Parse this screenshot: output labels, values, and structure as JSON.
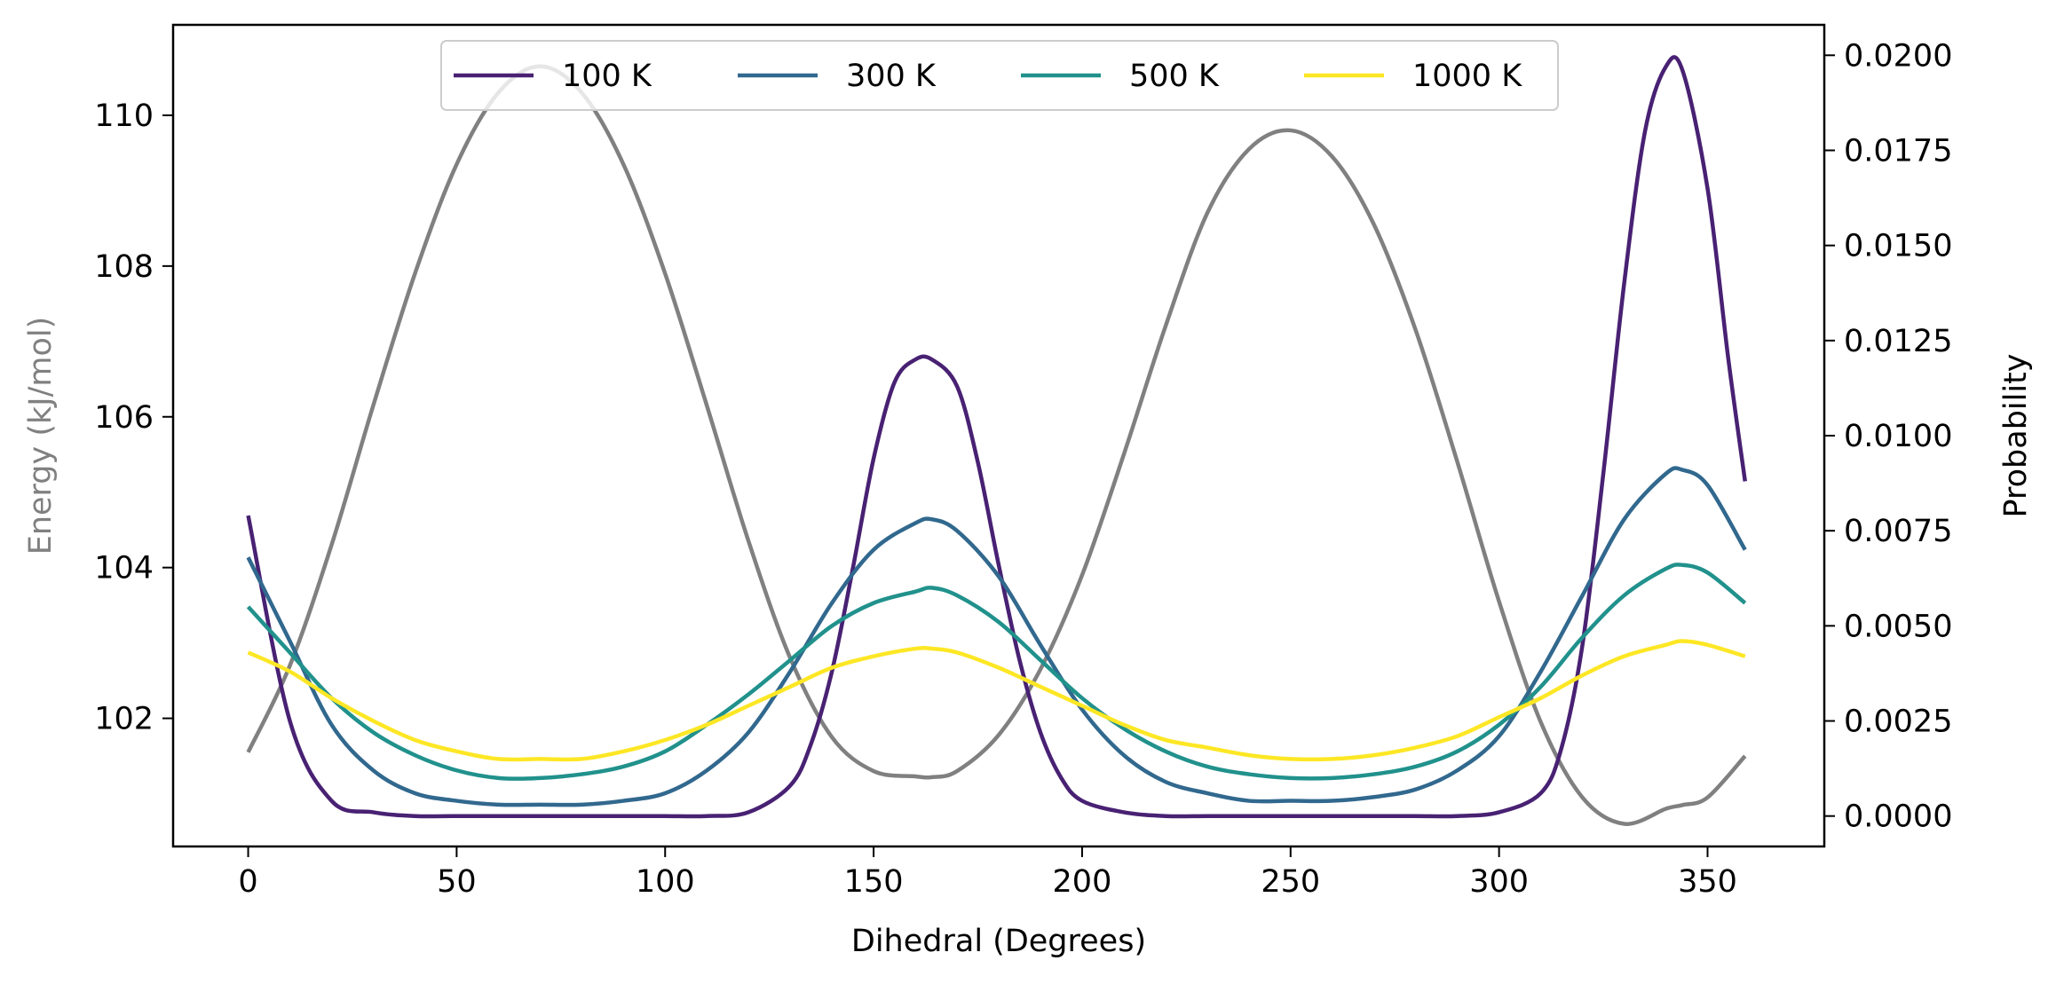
{
  "chart_data": {
    "type": "line",
    "title": "",
    "xlabel": "Dihedral (Degrees)",
    "ylabel_left": "Energy (kJ/mol)",
    "ylabel_right": "Probability",
    "xlim": [
      -18,
      378
    ],
    "ylim_left": [
      100.3,
      111.2
    ],
    "ylim_right": [
      -0.0008,
      0.0208
    ],
    "xticks": [
      "0",
      "50",
      "100",
      "150",
      "200",
      "250",
      "300",
      "350"
    ],
    "yticks_left": [
      "102",
      "104",
      "106",
      "108",
      "110"
    ],
    "yticks_right": [
      "0.0000",
      "0.0025",
      "0.0050",
      "0.0075",
      "0.0100",
      "0.0125",
      "0.0150",
      "0.0175",
      "0.0200"
    ],
    "legend_position": "top-center",
    "energy_series": {
      "name": "Energy",
      "color": "#808080",
      "axis": "left",
      "x": [
        0,
        10,
        20,
        30,
        40,
        50,
        60,
        70,
        80,
        90,
        100,
        110,
        120,
        130,
        140,
        150,
        160,
        164,
        170,
        180,
        190,
        200,
        210,
        220,
        230,
        240,
        250,
        260,
        270,
        280,
        290,
        300,
        310,
        320,
        330,
        340,
        344,
        350,
        359
      ],
      "values": [
        101.55,
        102.7,
        104.3,
        106.15,
        107.9,
        109.35,
        110.3,
        110.65,
        110.3,
        109.35,
        107.9,
        106.15,
        104.35,
        102.8,
        101.75,
        101.3,
        101.23,
        101.22,
        101.3,
        101.78,
        102.65,
        103.9,
        105.5,
        107.2,
        108.7,
        109.55,
        109.8,
        109.45,
        108.55,
        107.15,
        105.4,
        103.55,
        101.95,
        100.95,
        100.6,
        100.8,
        100.85,
        100.95,
        101.5
      ]
    },
    "series": [
      {
        "name": "100 K",
        "color": "#482173",
        "axis": "right",
        "x": [
          0,
          10,
          20,
          30,
          40,
          50,
          60,
          70,
          80,
          90,
          100,
          110,
          120,
          130,
          135,
          140,
          145,
          150,
          155,
          160,
          164,
          170,
          175,
          180,
          185,
          190,
          195,
          200,
          210,
          220,
          230,
          240,
          250,
          260,
          270,
          280,
          290,
          300,
          310,
          315,
          320,
          325,
          330,
          335,
          340,
          344,
          350,
          355,
          359
        ],
        "values": [
          0.0079,
          0.0025,
          0.0004,
          0.0001,
          0.0,
          0.0,
          0.0,
          0.0,
          0.0,
          0.0,
          0.0,
          0.0,
          0.0001,
          0.0008,
          0.0019,
          0.0038,
          0.0065,
          0.0094,
          0.0114,
          0.012,
          0.012,
          0.0113,
          0.0093,
          0.0066,
          0.0041,
          0.0022,
          0.001,
          0.0004,
          0.0001,
          0.0,
          0.0,
          0.0,
          0.0,
          0.0,
          0.0,
          0.0,
          0.0,
          0.0001,
          0.0006,
          0.0018,
          0.0045,
          0.009,
          0.014,
          0.018,
          0.0197,
          0.0196,
          0.0165,
          0.012,
          0.0088
        ]
      },
      {
        "name": "300 K",
        "color": "#31688e",
        "axis": "right",
        "x": [
          0,
          10,
          20,
          30,
          40,
          50,
          60,
          70,
          80,
          90,
          100,
          110,
          120,
          130,
          140,
          150,
          160,
          164,
          170,
          180,
          190,
          200,
          210,
          220,
          230,
          240,
          250,
          260,
          270,
          280,
          290,
          300,
          310,
          320,
          330,
          340,
          344,
          350,
          359
        ],
        "values": [
          0.0068,
          0.0046,
          0.0024,
          0.0012,
          0.0006,
          0.0004,
          0.0003,
          0.0003,
          0.0003,
          0.0004,
          0.0006,
          0.0012,
          0.0022,
          0.0038,
          0.0056,
          0.007,
          0.0077,
          0.0078,
          0.0075,
          0.0063,
          0.0045,
          0.0028,
          0.0016,
          0.0009,
          0.0006,
          0.0004,
          0.0004,
          0.0004,
          0.0005,
          0.0007,
          0.0012,
          0.0021,
          0.0038,
          0.0058,
          0.0078,
          0.009,
          0.0091,
          0.0087,
          0.007
        ]
      },
      {
        "name": "500 K",
        "color": "#21918c",
        "axis": "right",
        "x": [
          0,
          10,
          20,
          30,
          40,
          50,
          60,
          70,
          80,
          90,
          100,
          110,
          120,
          130,
          140,
          150,
          160,
          164,
          170,
          180,
          190,
          200,
          210,
          220,
          230,
          240,
          250,
          260,
          270,
          280,
          290,
          300,
          310,
          320,
          330,
          340,
          344,
          350,
          359
        ],
        "values": [
          0.0055,
          0.0043,
          0.0031,
          0.0022,
          0.0016,
          0.0012,
          0.001,
          0.001,
          0.0011,
          0.0013,
          0.0017,
          0.0024,
          0.0032,
          0.0041,
          0.005,
          0.0056,
          0.0059,
          0.006,
          0.0058,
          0.0051,
          0.0041,
          0.0031,
          0.0023,
          0.0017,
          0.0013,
          0.0011,
          0.001,
          0.001,
          0.0011,
          0.0013,
          0.0017,
          0.0024,
          0.0034,
          0.0047,
          0.0058,
          0.0065,
          0.0066,
          0.0064,
          0.0056
        ]
      },
      {
        "name": "1000 K",
        "color": "#fde725",
        "axis": "right",
        "x": [
          0,
          10,
          20,
          30,
          40,
          50,
          60,
          70,
          80,
          90,
          100,
          110,
          120,
          130,
          140,
          150,
          160,
          164,
          170,
          180,
          190,
          200,
          210,
          220,
          230,
          240,
          250,
          260,
          270,
          280,
          290,
          300,
          310,
          320,
          330,
          340,
          344,
          350,
          359
        ],
        "values": [
          0.0043,
          0.0038,
          0.0031,
          0.0025,
          0.002,
          0.0017,
          0.0015,
          0.0015,
          0.0015,
          0.0017,
          0.002,
          0.0024,
          0.0029,
          0.0034,
          0.0039,
          0.0042,
          0.0044,
          0.0044,
          0.0043,
          0.0039,
          0.0034,
          0.0029,
          0.0024,
          0.002,
          0.0018,
          0.0016,
          0.0015,
          0.0015,
          0.0016,
          0.0018,
          0.0021,
          0.0026,
          0.0031,
          0.0037,
          0.0042,
          0.0045,
          0.0046,
          0.0045,
          0.0042
        ]
      }
    ]
  }
}
